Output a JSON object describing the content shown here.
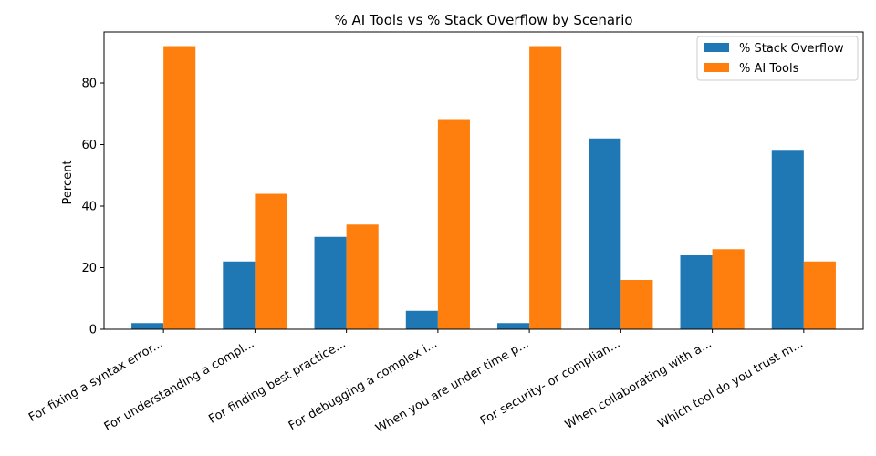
{
  "chart_data": {
    "type": "bar",
    "title": "% AI Tools vs % Stack Overflow by Scenario",
    "xlabel": "",
    "ylabel": "Percent",
    "ylim": [
      0,
      96.6
    ],
    "yticks": [
      0,
      20,
      40,
      60,
      80
    ],
    "categories": [
      "For fixing a syntax error...",
      "For understanding a compl...",
      "For finding best practice...",
      "For debugging a complex i...",
      "When you are under time p...",
      "For security- or complian...",
      "When collaborating with a...",
      "Which tool do you trust m..."
    ],
    "series": [
      {
        "name": "% Stack Overflow",
        "color": "#1f77b4",
        "values": [
          2,
          22,
          30,
          6,
          2,
          62,
          24,
          58
        ]
      },
      {
        "name": "% AI Tools",
        "color": "#ff7f0e",
        "values": [
          92,
          44,
          34,
          68,
          92,
          16,
          26,
          22
        ]
      }
    ],
    "grid": false,
    "legend_position": "top-right"
  }
}
